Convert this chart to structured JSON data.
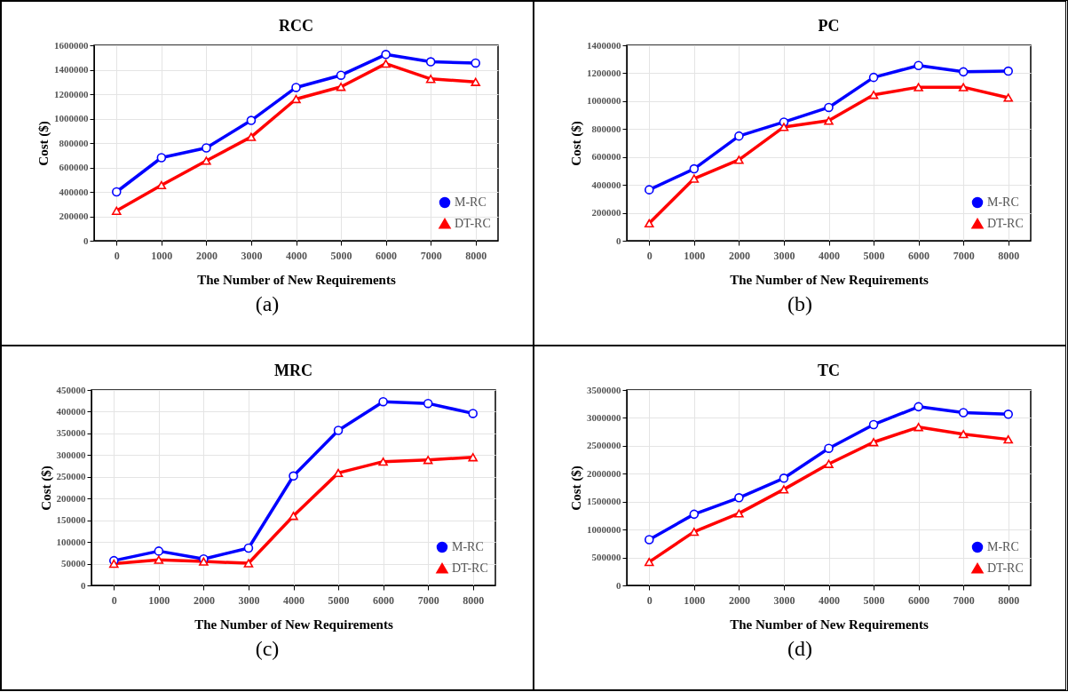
{
  "chart_data": [
    {
      "type": "line",
      "title": "RCC",
      "xlabel": "The Number of New Requirements",
      "ylabel": "Cost ($)",
      "categories": [
        "0",
        "1000",
        "2000",
        "3000",
        "4000",
        "5000",
        "6000",
        "7000",
        "8000"
      ],
      "ylim": [
        0,
        1600000
      ],
      "yticks": [
        0,
        200000,
        400000,
        600000,
        800000,
        1000000,
        1200000,
        1400000,
        1600000
      ],
      "grid": true,
      "legend": "bottom right",
      "annotations": [
        "(a)"
      ],
      "series": [
        {
          "name": "M-RC",
          "color": "#0000ff",
          "marker": "circle",
          "values": [
            400000,
            680000,
            760000,
            985000,
            1255000,
            1355000,
            1525000,
            1465000,
            1455000
          ]
        },
        {
          "name": "DT-RC",
          "color": "#ff0000",
          "marker": "triangle",
          "values": [
            245000,
            455000,
            655000,
            850000,
            1160000,
            1260000,
            1450000,
            1325000,
            1300000
          ]
        }
      ]
    },
    {
      "type": "line",
      "title": "PC",
      "xlabel": "The Number of New Requirements",
      "ylabel": "Cost ($)",
      "categories": [
        "0",
        "1000",
        "2000",
        "3000",
        "4000",
        "5000",
        "6000",
        "7000",
        "8000"
      ],
      "ylim": [
        0,
        1400000
      ],
      "yticks": [
        0,
        200000,
        400000,
        600000,
        800000,
        1000000,
        1200000,
        1400000
      ],
      "grid": true,
      "legend": "bottom right",
      "annotations": [
        "(b)"
      ],
      "series": [
        {
          "name": "M-RC",
          "color": "#0000ff",
          "marker": "circle",
          "values": [
            365000,
            515000,
            750000,
            850000,
            955000,
            1170000,
            1255000,
            1210000,
            1215000
          ]
        },
        {
          "name": "DT-RC",
          "color": "#ff0000",
          "marker": "triangle",
          "values": [
            125000,
            445000,
            580000,
            815000,
            860000,
            1045000,
            1100000,
            1100000,
            1025000
          ]
        }
      ]
    },
    {
      "type": "line",
      "title": "MRC",
      "xlabel": "The Number of New Requirements",
      "ylabel": "Cost ($)",
      "categories": [
        "0",
        "1000",
        "2000",
        "3000",
        "4000",
        "5000",
        "6000",
        "7000",
        "8000"
      ],
      "ylim": [
        0,
        450000
      ],
      "yticks": [
        0,
        50000,
        100000,
        150000,
        200000,
        250000,
        300000,
        350000,
        400000,
        450000
      ],
      "grid": true,
      "legend": "bottom right",
      "annotations": [
        "(c)"
      ],
      "series": [
        {
          "name": "M-RC",
          "color": "#0000ff",
          "marker": "circle",
          "values": [
            57000,
            79000,
            61000,
            86000,
            252000,
            357000,
            423000,
            419000,
            396000
          ]
        },
        {
          "name": "DT-RC",
          "color": "#ff0000",
          "marker": "triangle",
          "values": [
            50000,
            59000,
            55000,
            51000,
            160000,
            259000,
            285000,
            289000,
            295000
          ]
        }
      ]
    },
    {
      "type": "line",
      "title": "TC",
      "xlabel": "The Number of New Requirements",
      "ylabel": "Cost ($)",
      "categories": [
        "0",
        "1000",
        "2000",
        "3000",
        "4000",
        "5000",
        "6000",
        "7000",
        "8000"
      ],
      "ylim": [
        0,
        3500000
      ],
      "yticks": [
        0,
        500000,
        1000000,
        1500000,
        2000000,
        2500000,
        3000000,
        3500000
      ],
      "grid": true,
      "legend": "bottom right",
      "annotations": [
        "(d)"
      ],
      "series": [
        {
          "name": "M-RC",
          "color": "#0000ff",
          "marker": "circle",
          "values": [
            820000,
            1275000,
            1570000,
            1920000,
            2455000,
            2880000,
            3200000,
            3095000,
            3065000
          ]
        },
        {
          "name": "DT-RC",
          "color": "#ff0000",
          "marker": "triangle",
          "values": [
            420000,
            960000,
            1290000,
            1720000,
            2175000,
            2565000,
            2835000,
            2710000,
            2615000
          ]
        }
      ]
    }
  ]
}
